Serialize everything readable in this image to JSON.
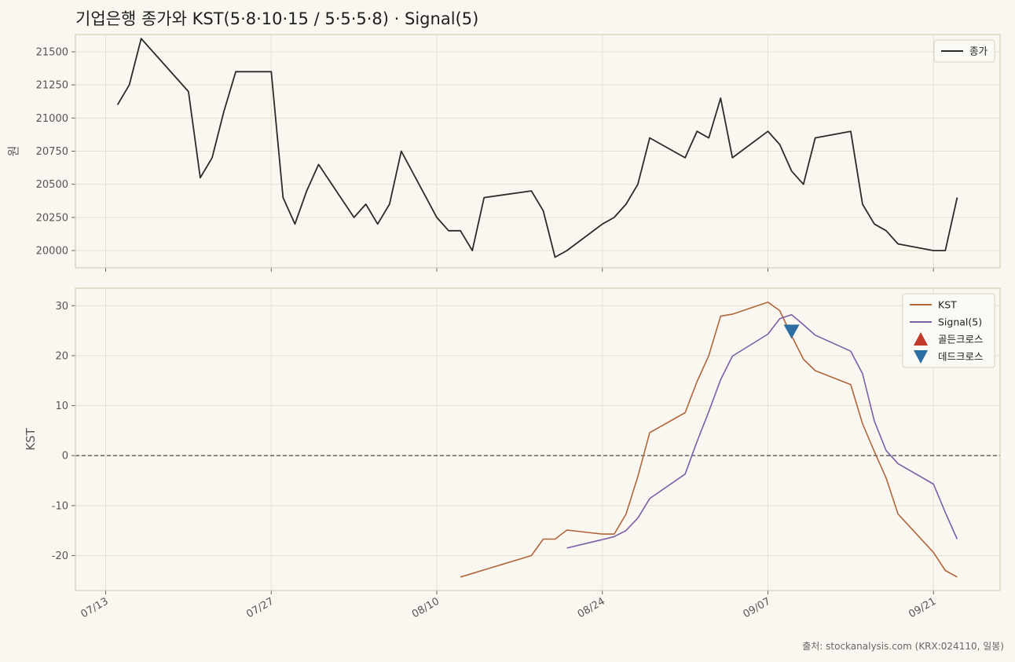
{
  "title": "기업은행 종가와 KST(5·8·10·15 / 5·5·5·8) · Signal(5)",
  "source": "출처: stockanalysis.com (KRX:024110, 일봉)",
  "colors": {
    "background": "#faf7f0",
    "close": "#2b2b2b",
    "kst": "#b0653a",
    "signal": "#7b5ea7",
    "golden": "#c0392b",
    "dead": "#2e6fa3",
    "grid": "#e6e0d2",
    "frame": "#d8ceb4",
    "zero_line": "#555555"
  },
  "chart_data": [
    {
      "type": "line",
      "ylabel": "원",
      "ylim": [
        19870,
        21630
      ],
      "yticks": [
        20000,
        20250,
        20500,
        20750,
        21000,
        21250,
        21500
      ],
      "legend": "top-right",
      "grid": true,
      "x": [
        "07/14",
        "07/15",
        "07/16",
        "07/20",
        "07/21",
        "07/22",
        "07/23",
        "07/24",
        "07/27",
        "07/28",
        "07/29",
        "07/30",
        "07/31",
        "08/03",
        "08/04",
        "08/05",
        "08/06",
        "08/07",
        "08/10",
        "08/11",
        "08/12",
        "08/13",
        "08/14",
        "08/18",
        "08/19",
        "08/20",
        "08/21",
        "08/24",
        "08/25",
        "08/26",
        "08/27",
        "08/28",
        "08/31",
        "09/01",
        "09/02",
        "09/03",
        "09/04",
        "09/07",
        "09/08",
        "09/09",
        "09/10",
        "09/11",
        "09/14",
        "09/15",
        "09/16",
        "09/17",
        "09/18",
        "09/21",
        "09/22",
        "09/23"
      ],
      "series": [
        {
          "name": "종가",
          "values": [
            21100,
            21250,
            21600,
            21200,
            20550,
            20700,
            21050,
            21350,
            21350,
            20400,
            20200,
            20450,
            20650,
            20250,
            20350,
            20200,
            20350,
            20750,
            20250,
            20150,
            20150,
            20000,
            20400,
            20450,
            20300,
            19950,
            20000,
            20200,
            20250,
            20350,
            20500,
            20850,
            20700,
            20900,
            20850,
            21150,
            20700,
            20900,
            20800,
            20600,
            20500,
            20850,
            20900,
            20350,
            20200,
            20150,
            20050,
            20000,
            20000,
            20400
          ]
        }
      ]
    },
    {
      "type": "line",
      "ylabel": "KST",
      "ylim": [
        -27,
        33.5
      ],
      "yticks": [
        -20,
        -10,
        0,
        10,
        20,
        30
      ],
      "zero_line": true,
      "legend": "top-right",
      "grid": true,
      "x": [
        "08/12",
        "08/13",
        "08/14",
        "08/18",
        "08/19",
        "08/20",
        "08/21",
        "08/24",
        "08/25",
        "08/26",
        "08/27",
        "08/28",
        "08/31",
        "09/01",
        "09/02",
        "09/03",
        "09/04",
        "09/07",
        "09/08",
        "09/09",
        "09/10",
        "09/11",
        "09/14",
        "09/15",
        "09/16",
        "09/17",
        "09/18",
        "09/21",
        "09/22",
        "09/23"
      ],
      "series": [
        {
          "name": "KST",
          "values": [
            -24.3,
            null,
            null,
            -20.0,
            -16.7,
            -16.7,
            -14.9,
            -15.7,
            -15.7,
            -11.7,
            -4.2,
            4.6,
            8.6,
            14.8,
            20.0,
            27.9,
            28.3,
            30.7,
            29.0,
            24.0,
            19.3,
            17.0,
            14.2,
            6.4,
            0.8,
            -4.5,
            -11.7,
            -19.4,
            -23.0,
            -24.3
          ]
        },
        {
          "name": "Signal(5)",
          "values": [
            null,
            null,
            null,
            null,
            null,
            null,
            -18.5,
            -16.8,
            -16.2,
            -15.0,
            -12.5,
            -8.6,
            -3.7,
            2.8,
            8.8,
            15.2,
            19.9,
            24.3,
            27.4,
            28.2,
            26.2,
            24.1,
            20.9,
            16.4,
            6.9,
            1.0,
            -1.6,
            -5.7,
            -11.4,
            -16.7
          ]
        }
      ],
      "markers": [
        {
          "name": "골든크로스",
          "shape": "triangle-up",
          "points": []
        },
        {
          "name": "데드크로스",
          "shape": "triangle-down",
          "points": [
            {
              "x": "09/09",
              "y": 24.8
            }
          ]
        }
      ]
    }
  ],
  "xticks": [
    "07/13",
    "07/27",
    "08/10",
    "08/24",
    "09/07",
    "09/21"
  ]
}
